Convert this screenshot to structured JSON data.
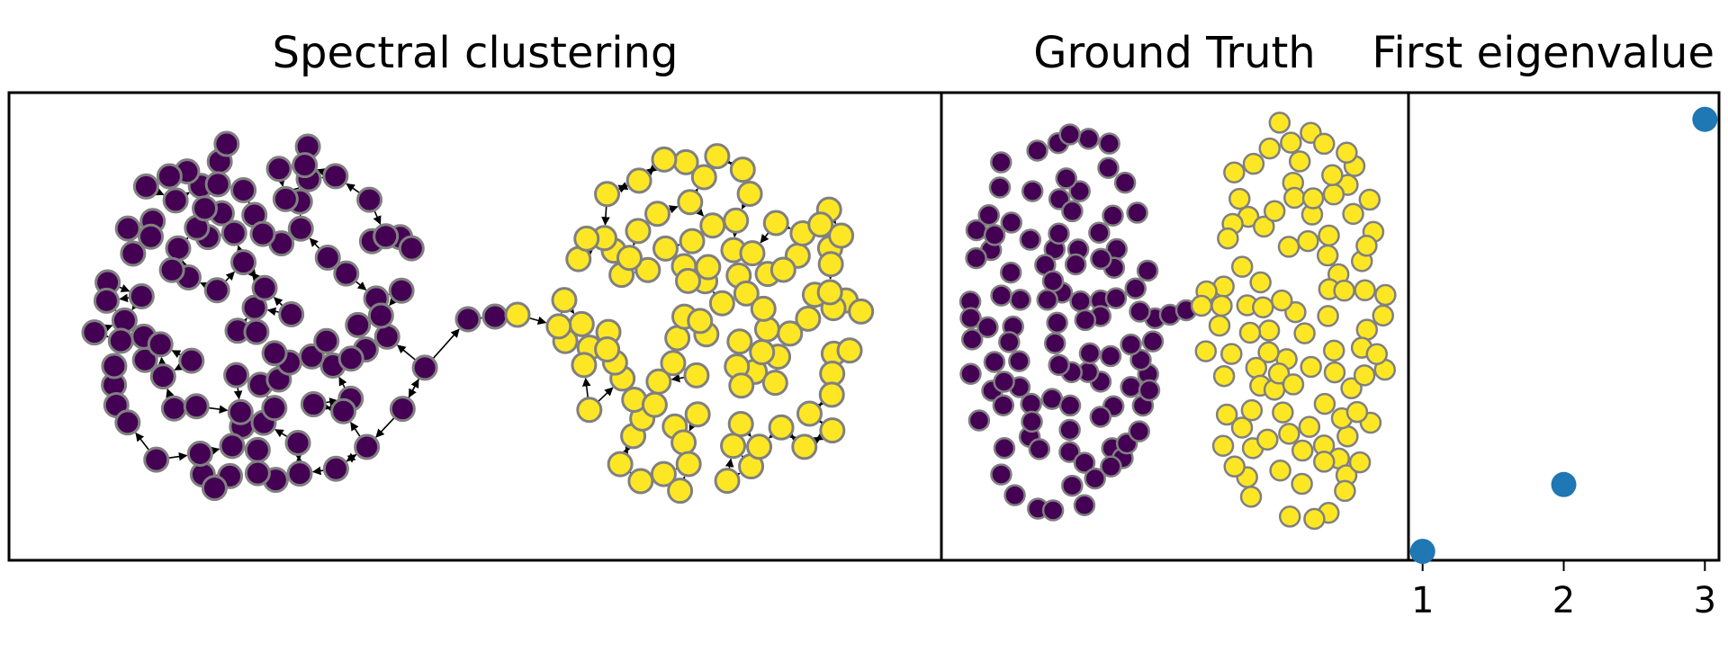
{
  "figure": {
    "panels": [
      {
        "title": "Spectral clustering"
      },
      {
        "title": "Ground Truth"
      },
      {
        "title": "First eigenvalue"
      }
    ]
  },
  "chart_data": [
    {
      "type": "scatter",
      "title": "Spectral clustering",
      "subtype": "directed-graph",
      "axes": "off",
      "colors": {
        "cluster_0": "#440154",
        "cluster_1": "#fde725",
        "node_edge": "#808080",
        "edge": "#000000"
      },
      "clusters": [
        {
          "label": 0,
          "approx_nodes": 100
        },
        {
          "label": 1,
          "approx_nodes": 100
        }
      ]
    },
    {
      "type": "scatter",
      "title": "Ground Truth",
      "axes": "off",
      "colors": {
        "cluster_0": "#440154",
        "cluster_1": "#fde725",
        "node_edge": "#808080"
      },
      "clusters": [
        {
          "label": 0,
          "approx_nodes": 100
        },
        {
          "label": 1,
          "approx_nodes": 100
        }
      ]
    },
    {
      "type": "scatter",
      "title": "First eigenvalue",
      "x": [
        1,
        2,
        3
      ],
      "y": [
        0.02,
        0.17,
        0.99
      ],
      "xticks": [
        "1",
        "2",
        "3"
      ],
      "yticks": [],
      "color": "#1f77b4",
      "xlim": [
        0.9,
        3.1
      ],
      "ylim": [
        0,
        1.05
      ]
    }
  ]
}
